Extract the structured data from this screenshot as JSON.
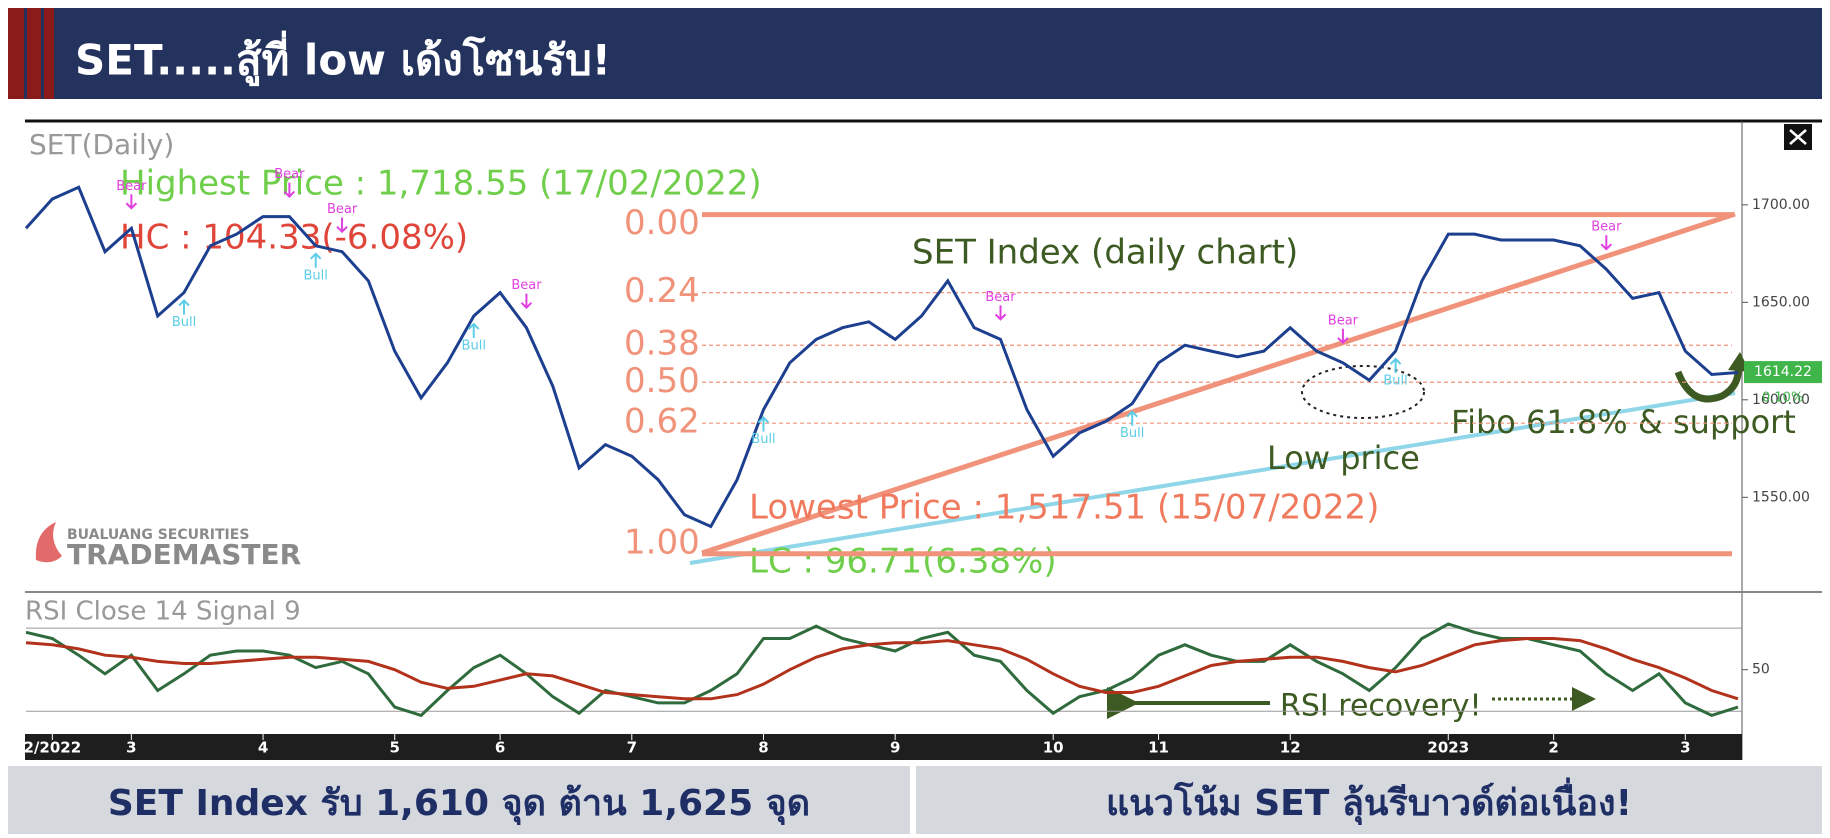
{
  "header": {
    "title": "SET.....สู้ที่ low เด้งโซนรับ!"
  },
  "chart_data": [
    {
      "type": "line",
      "title": "SET(Daily)",
      "annotations": {
        "highest": "Highest Price : 1,718.55 (17/02/2022)",
        "hc": "HC : 104.33(-6.08%)",
        "chart_label": "SET Index (daily chart)",
        "lowest": "Lowest Price : 1,517.51 (15/07/2022)",
        "lc": "LC : 96.71(6.38%)",
        "low_price": "Low price",
        "support": "Fibo 61.8% & support",
        "change": "0.10%"
      },
      "logo": {
        "company": "BUALUANG SECURITIES",
        "product": "TRADEMASTER"
      },
      "categories": [
        null,
        "2/2022",
        null,
        null,
        "3",
        null,
        null,
        null,
        null,
        "4",
        null,
        null,
        null,
        null,
        "5",
        null,
        null,
        null,
        "6",
        null,
        null,
        null,
        null,
        "7",
        null,
        null,
        null,
        null,
        "8",
        null,
        null,
        null,
        null,
        "9",
        null,
        null,
        null,
        null,
        null,
        "10",
        null,
        null,
        null,
        "11",
        null,
        null,
        null,
        null,
        "12",
        null,
        null,
        null,
        null,
        null,
        "2023",
        null,
        null,
        null,
        "2",
        null,
        null,
        null,
        null,
        "3",
        null,
        null
      ],
      "series": [
        {
          "name": "SET",
          "color": "#1d3f8f",
          "values": [
            1688,
            1703,
            1709,
            1676,
            1688,
            1643,
            1655,
            1679,
            1685,
            1694,
            1694,
            1679,
            1676,
            1661,
            1625,
            1601,
            1619,
            1643,
            1655,
            1637,
            1607,
            1565,
            1577,
            1571,
            1559,
            1541,
            1535,
            1559,
            1595,
            1619,
            1631,
            1637,
            1640,
            1631,
            1643,
            1661,
            1637,
            1631,
            1595,
            1571,
            1583,
            1589,
            1598,
            1619,
            1628,
            1625,
            1622,
            1625,
            1637,
            1625,
            1619,
            1610,
            1625,
            1661,
            1685,
            1685,
            1682,
            1682,
            1682,
            1679,
            1667,
            1652,
            1655,
            1625,
            1613,
            1614
          ]
        }
      ],
      "last_price": 1614.22,
      "fibo": [
        {
          "value": 1695,
          "label": "0.00"
        },
        {
          "value": 1655,
          "label": "0.24"
        },
        {
          "value": 1628,
          "label": "0.38"
        },
        {
          "value": 1609,
          "label": "0.50"
        },
        {
          "value": 1588,
          "label": "0.62"
        },
        {
          "value": 1521,
          "label": "1.00"
        }
      ],
      "signals": [
        {
          "label": "Bear",
          "x": 4
        },
        {
          "label": "Bull",
          "x": 6
        },
        {
          "label": "Bear",
          "x": 10
        },
        {
          "label": "Bull",
          "x": 11
        },
        {
          "label": "Bear",
          "x": 12
        },
        {
          "label": "Bull",
          "x": 17
        },
        {
          "label": "Bear",
          "x": 19
        },
        {
          "label": "Bull",
          "x": 28
        },
        {
          "label": "Bear",
          "x": 37
        },
        {
          "label": "Bull",
          "x": 42
        },
        {
          "label": "Bear",
          "x": 50
        },
        {
          "label": "Bull",
          "x": 52
        },
        {
          "label": "Bear",
          "x": 60
        }
      ],
      "ylim": [
        1505,
        1742
      ],
      "yticks": [
        {
          "value": 1550,
          "label": "1550.00"
        },
        {
          "value": 1600,
          "label": "1600.00"
        },
        {
          "value": 1650,
          "label": "1650.00"
        },
        {
          "value": 1700,
          "label": "1700.00"
        }
      ]
    },
    {
      "type": "line",
      "title": "RSI Close 14 Signal 9",
      "annotation": "RSI recovery!",
      "series": [
        {
          "name": "RSI",
          "color": "#2f6b3c",
          "values": [
            68,
            65,
            57,
            48,
            57,
            40,
            48,
            57,
            59,
            59,
            57,
            51,
            54,
            48,
            32,
            28,
            40,
            51,
            57,
            48,
            37,
            29,
            40,
            37,
            34,
            34,
            40,
            48,
            65,
            65,
            71,
            65,
            62,
            59,
            65,
            68,
            57,
            54,
            40,
            29,
            37,
            40,
            46,
            57,
            62,
            57,
            54,
            54,
            62,
            54,
            48,
            40,
            51,
            65,
            72,
            68,
            65,
            65,
            62,
            59,
            48,
            40,
            48,
            34,
            28,
            32
          ]
        },
        {
          "name": "Signal",
          "color": "#b2321c",
          "values": [
            63,
            62,
            60,
            57,
            56,
            54,
            53,
            53,
            54,
            55,
            56,
            56,
            55,
            54,
            50,
            44,
            41,
            42,
            45,
            48,
            47,
            43,
            39,
            38,
            37,
            36,
            36,
            38,
            43,
            50,
            56,
            60,
            62,
            63,
            63,
            64,
            62,
            60,
            55,
            48,
            42,
            39,
            39,
            42,
            47,
            52,
            54,
            55,
            56,
            56,
            54,
            51,
            49,
            52,
            57,
            62,
            64,
            65,
            65,
            64,
            60,
            55,
            51,
            46,
            40,
            36
          ]
        }
      ],
      "levels": [
        30,
        70
      ],
      "ylim": [
        20,
        85
      ],
      "yticks": [
        50
      ]
    }
  ],
  "footer": {
    "left": "SET Index รับ 1,610 จุด ต้าน 1,625 จุด",
    "right": "แนวโน้ม SET ลุ้นรีบาวด์ต่อเนื่อง!"
  }
}
